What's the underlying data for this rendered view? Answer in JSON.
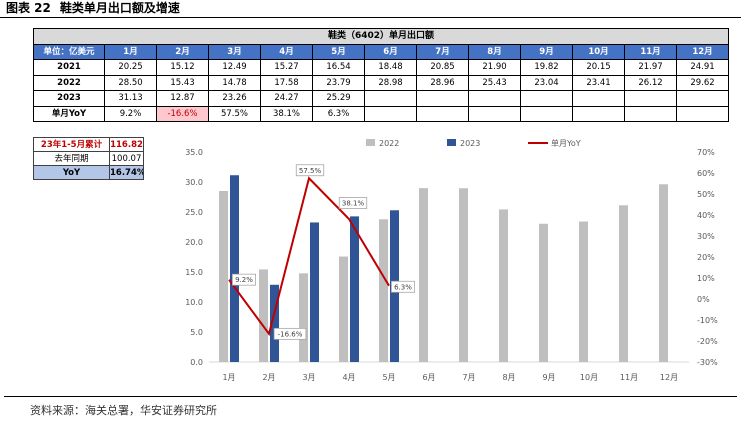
{
  "figure": {
    "label": "图表 22",
    "title": "鞋类单月出口额及增速",
    "source": "资料来源：海关总署，华安证券研究所"
  },
  "colors": {
    "title_gray": "#D9D9D9",
    "header_blue": "#4472C4",
    "negative_fill": "#FFC7CE",
    "negative_text": "#C00000",
    "summary_accent": "#C00000",
    "summary_yoy_fill": "#B4C6E7"
  },
  "table": {
    "title": "鞋类（6402）单月出口额",
    "unit_label": "单位：亿美元",
    "months": [
      "1月",
      "2月",
      "3月",
      "4月",
      "5月",
      "6月",
      "7月",
      "8月",
      "9月",
      "10月",
      "11月",
      "12月"
    ],
    "rows": [
      {
        "label": "2021",
        "values": [
          "20.25",
          "15.12",
          "12.49",
          "15.27",
          "16.54",
          "18.48",
          "20.85",
          "21.90",
          "19.82",
          "20.15",
          "21.97",
          "24.91"
        ]
      },
      {
        "label": "2022",
        "values": [
          "28.50",
          "15.43",
          "14.78",
          "17.58",
          "23.79",
          "28.98",
          "28.96",
          "25.43",
          "23.04",
          "23.41",
          "26.12",
          "29.62"
        ]
      },
      {
        "label": "2023",
        "values": [
          "31.13",
          "12.87",
          "23.26",
          "24.27",
          "25.29"
        ]
      },
      {
        "label": "单月YoY",
        "values": [
          "9.2%",
          "-16.6%",
          "57.5%",
          "38.1%",
          "6.3%"
        ]
      }
    ]
  },
  "summary": [
    {
      "label": "23年1-5月累计",
      "value": "116.82"
    },
    {
      "label": "去年同期",
      "value": "100.07"
    },
    {
      "label": "YoY",
      "value": "16.74%"
    }
  ],
  "chart_data": {
    "type": "bar",
    "categories": [
      "1月",
      "2月",
      "3月",
      "4月",
      "5月",
      "6月",
      "7月",
      "8月",
      "9月",
      "10月",
      "11月",
      "12月"
    ],
    "series": [
      {
        "name": "2022",
        "type": "bar",
        "axis": "left",
        "color": "#BFBFBF",
        "values": [
          28.5,
          15.43,
          14.78,
          17.58,
          23.79,
          28.98,
          28.96,
          25.43,
          23.04,
          23.41,
          26.12,
          29.62
        ]
      },
      {
        "name": "2023",
        "type": "bar",
        "axis": "left",
        "color": "#2F5597",
        "values": [
          31.13,
          12.87,
          23.26,
          24.27,
          25.29,
          null,
          null,
          null,
          null,
          null,
          null,
          null
        ]
      },
      {
        "name": "单月YoY",
        "type": "line",
        "axis": "right",
        "color": "#C00000",
        "values": [
          9.2,
          -16.6,
          57.5,
          38.1,
          6.3,
          null,
          null,
          null,
          null,
          null,
          null,
          null
        ],
        "labels": [
          "9.2%",
          "-16.6%",
          "57.5%",
          "38.1%",
          "6.3%"
        ]
      }
    ],
    "y_left": {
      "min": 0,
      "max": 35,
      "ticks": [
        "0.0",
        "5.0",
        "10.0",
        "15.0",
        "20.0",
        "25.0",
        "30.0",
        "35.0"
      ]
    },
    "y_right": {
      "min": -30,
      "max": 70,
      "ticks": [
        "-30%",
        "-20%",
        "-10%",
        "0%",
        "10%",
        "20%",
        "30%",
        "40%",
        "50%",
        "60%",
        "70%"
      ]
    },
    "legend": "top",
    "grid": false
  }
}
